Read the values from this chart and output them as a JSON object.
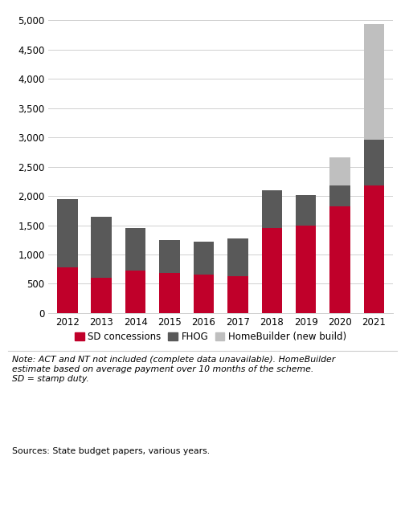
{
  "years": [
    "2012",
    "2013",
    "2014",
    "2015",
    "2016",
    "2017",
    "2018",
    "2019",
    "2020",
    "2021"
  ],
  "sd_concessions": [
    780,
    600,
    730,
    680,
    660,
    630,
    1450,
    1500,
    1820,
    2180
  ],
  "fhog": [
    1170,
    1050,
    720,
    570,
    560,
    640,
    650,
    510,
    360,
    780
  ],
  "homebuilder": [
    0,
    0,
    0,
    0,
    0,
    0,
    0,
    0,
    480,
    1980
  ],
  "sd_color": "#c0002a",
  "fhog_color": "#595959",
  "homebuilder_color": "#bfbfbf",
  "ylim": [
    0,
    5000
  ],
  "yticks": [
    0,
    500,
    1000,
    1500,
    2000,
    2500,
    3000,
    3500,
    4000,
    4500,
    5000
  ],
  "ytick_labels": [
    "0",
    "500",
    "1,000",
    "1,500",
    "2,000",
    "2,500",
    "3,000",
    "3,500",
    "4,000",
    "4,500",
    "5,000"
  ],
  "legend_labels": [
    "SD concessions",
    "FHOG",
    "HomeBuilder (new build)"
  ],
  "note_text": "Note: ACT and NT not included (complete data unavailable). HomeBuilder\nestimate based on average payment over 10 months of the scheme.\nSD = stamp duty.",
  "source_text": "Sources: State budget papers, various years.",
  "background_color": "#ffffff"
}
